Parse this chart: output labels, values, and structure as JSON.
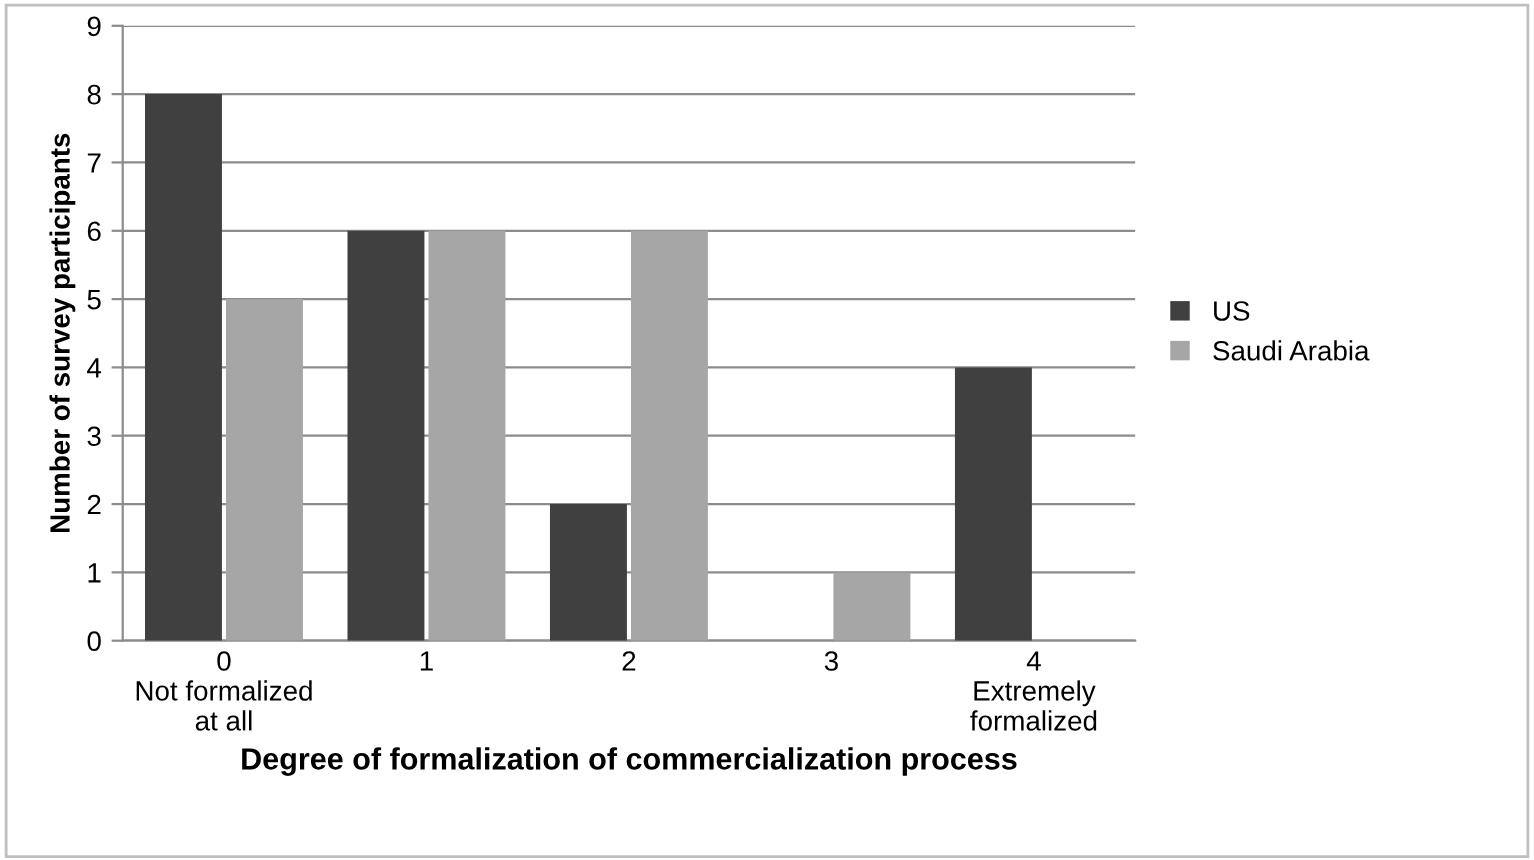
{
  "chart_data": {
    "type": "bar",
    "xlabel": "Degree of formalization of commercialization process",
    "ylabel": "Number of survey participants",
    "categories": [
      "0\nNot formalized\nat all",
      "1",
      "2",
      "3",
      "4\nExtremely\nformalized"
    ],
    "series": [
      {
        "name": "US",
        "color": "#404040",
        "values": [
          8,
          6,
          2,
          0,
          4
        ]
      },
      {
        "name": "Saudi Arabia",
        "color": "#a6a6a6",
        "values": [
          5,
          6,
          6,
          1,
          0
        ]
      }
    ],
    "ylim": [
      0,
      9
    ],
    "yticks": [
      0,
      1,
      2,
      3,
      4,
      5,
      6,
      7,
      8,
      9
    ],
    "grid": "y",
    "legend": "right"
  }
}
